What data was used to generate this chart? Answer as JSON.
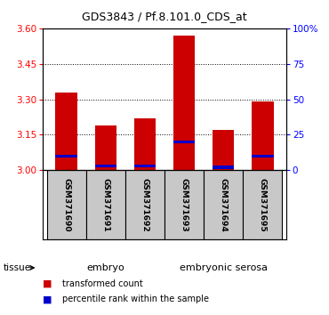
{
  "title": "GDS3843 / Pf.8.101.0_CDS_at",
  "samples": [
    "GSM371690",
    "GSM371691",
    "GSM371692",
    "GSM371693",
    "GSM371694",
    "GSM371695"
  ],
  "transformed_counts": [
    3.33,
    3.19,
    3.22,
    3.57,
    3.17,
    3.29
  ],
  "percentile_ranks": [
    10,
    3,
    3,
    20,
    2,
    10
  ],
  "ylim_left": [
    3.0,
    3.6
  ],
  "ylim_right": [
    0,
    100
  ],
  "yticks_left": [
    3.0,
    3.15,
    3.3,
    3.45,
    3.6
  ],
  "yticks_right": [
    0,
    25,
    50,
    75,
    100
  ],
  "bar_color": "#cc0000",
  "percentile_color": "#0000cc",
  "bar_width": 0.55,
  "groups": [
    {
      "label": "embryo",
      "color": "#bbffbb",
      "start": 0,
      "end": 2
    },
    {
      "label": "embryonic serosa",
      "color": "#44ee44",
      "start": 3,
      "end": 5
    }
  ],
  "tissue_label": "tissue",
  "legend_items": [
    {
      "label": "transformed count",
      "color": "#cc0000"
    },
    {
      "label": "percentile rank within the sample",
      "color": "#0000cc"
    }
  ],
  "label_area_color": "#c8c8c8",
  "base_value": 3.0
}
